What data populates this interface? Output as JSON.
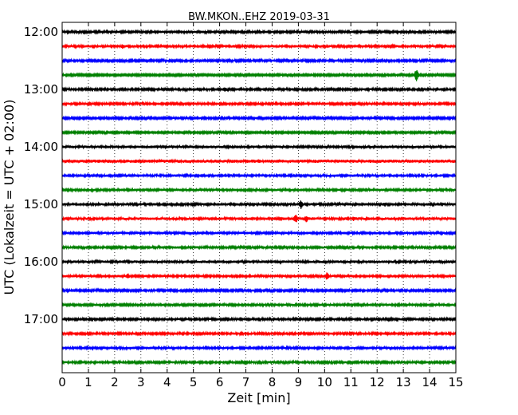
{
  "chart_data": {
    "type": "line",
    "title": "BW.MKON..EHZ 2019-03-31",
    "xlabel": "Zeit  [min]",
    "ylabel": "UTC (Lokalzeit = UTC + 02:00)",
    "xlim": [
      0,
      15
    ],
    "x_ticks": [
      0,
      1,
      2,
      3,
      4,
      5,
      6,
      7,
      8,
      9,
      10,
      11,
      12,
      13,
      14,
      15
    ],
    "y_tick_labels": [
      "12:00",
      "13:00",
      "14:00",
      "15:00",
      "16:00",
      "17:00"
    ],
    "grid": "vertical dotted",
    "colors": [
      "#000000",
      "#ff0000",
      "#0000ff",
      "#008000"
    ],
    "traces": [
      {
        "start": "12:00",
        "color": "#000000",
        "amplitude": 1.2,
        "events": []
      },
      {
        "start": "12:15",
        "color": "#ff0000",
        "amplitude": 1.3,
        "events": [
          {
            "minute": 2.3,
            "amplitude": 3
          }
        ]
      },
      {
        "start": "12:30",
        "color": "#0000ff",
        "amplitude": 1.1,
        "events": []
      },
      {
        "start": "12:45",
        "color": "#008000",
        "amplitude": 1.0,
        "events": [
          {
            "minute": 13.5,
            "amplitude": 8
          }
        ]
      },
      {
        "start": "13:00",
        "color": "#000000",
        "amplitude": 1.2,
        "events": [
          {
            "minute": 6.2,
            "amplitude": 4
          }
        ]
      },
      {
        "start": "13:15",
        "color": "#ff0000",
        "amplitude": 1.2,
        "events": []
      },
      {
        "start": "13:30",
        "color": "#0000ff",
        "amplitude": 1.1,
        "events": []
      },
      {
        "start": "13:45",
        "color": "#008000",
        "amplitude": 1.0,
        "events": []
      },
      {
        "start": "14:00",
        "color": "#000000",
        "amplitude": 1.4,
        "events": []
      },
      {
        "start": "14:15",
        "color": "#ff0000",
        "amplitude": 1.6,
        "events": [
          {
            "minute": 2.8,
            "amplitude": 3
          },
          {
            "minute": 7.5,
            "amplitude": 3
          }
        ]
      },
      {
        "start": "14:30",
        "color": "#0000ff",
        "amplitude": 1.3,
        "events": []
      },
      {
        "start": "14:45",
        "color": "#008000",
        "amplitude": 1.3,
        "events": []
      },
      {
        "start": "15:00",
        "color": "#000000",
        "amplitude": 1.3,
        "events": [
          {
            "minute": 9.1,
            "amplitude": 6
          },
          {
            "minute": 12.3,
            "amplitude": 3
          }
        ]
      },
      {
        "start": "15:15",
        "color": "#ff0000",
        "amplitude": 1.4,
        "events": [
          {
            "minute": 8.9,
            "amplitude": 6
          },
          {
            "minute": 9.3,
            "amplitude": 5
          },
          {
            "minute": 10.9,
            "amplitude": 3
          },
          {
            "minute": 11.1,
            "amplitude": 3
          }
        ]
      },
      {
        "start": "15:30",
        "color": "#0000ff",
        "amplitude": 1.3,
        "events": []
      },
      {
        "start": "15:45",
        "color": "#008000",
        "amplitude": 1.2,
        "events": []
      },
      {
        "start": "16:00",
        "color": "#000000",
        "amplitude": 1.4,
        "events": []
      },
      {
        "start": "16:15",
        "color": "#ff0000",
        "amplitude": 1.3,
        "events": [
          {
            "minute": 2.5,
            "amplitude": 4
          },
          {
            "minute": 10.1,
            "amplitude": 6
          }
        ]
      },
      {
        "start": "16:30",
        "color": "#0000ff",
        "amplitude": 1.1,
        "events": []
      },
      {
        "start": "16:45",
        "color": "#008000",
        "amplitude": 1.2,
        "events": []
      },
      {
        "start": "17:00",
        "color": "#000000",
        "amplitude": 1.2,
        "events": []
      },
      {
        "start": "17:15",
        "color": "#ff0000",
        "amplitude": 1.2,
        "events": []
      },
      {
        "start": "17:30",
        "color": "#0000ff",
        "amplitude": 1.3,
        "events": []
      },
      {
        "start": "17:45",
        "color": "#008000",
        "amplitude": 1.2,
        "events": []
      }
    ]
  }
}
